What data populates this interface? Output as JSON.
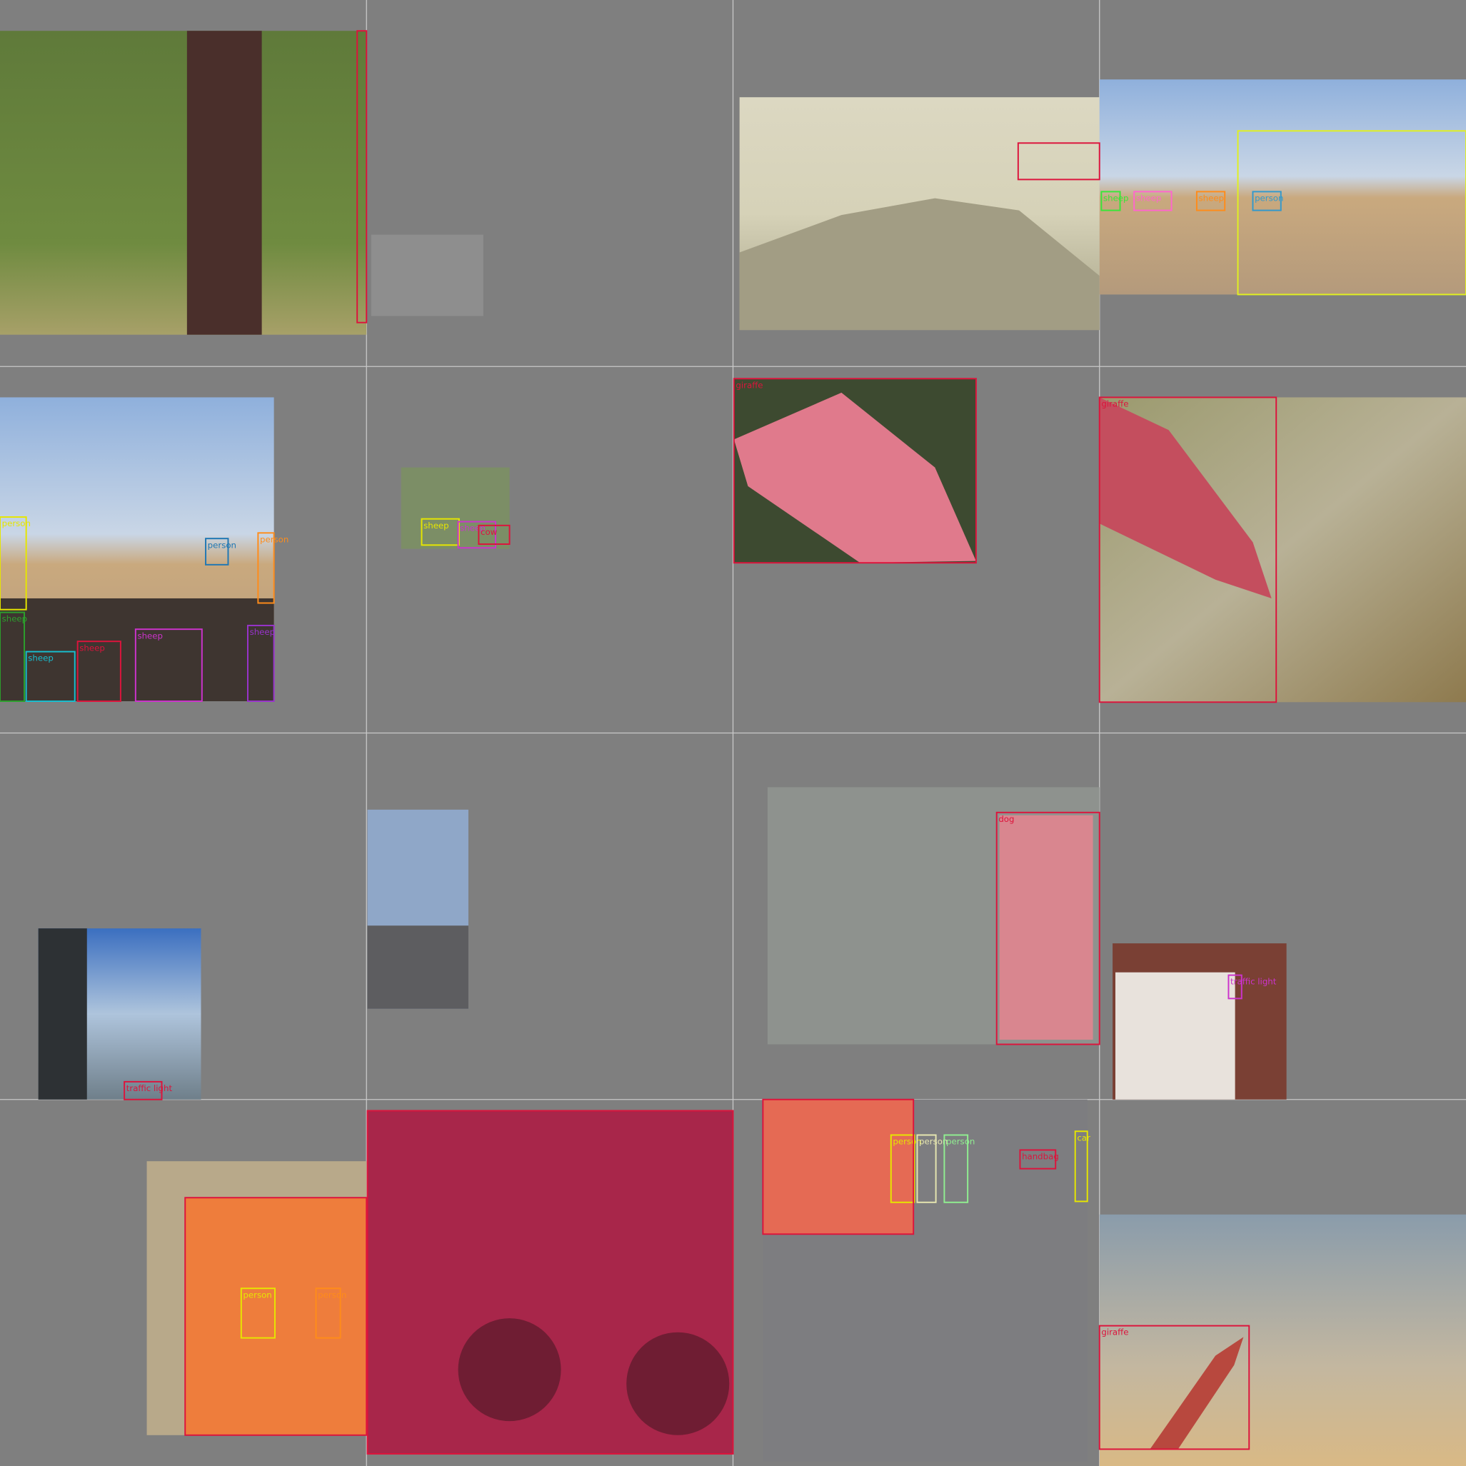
{
  "panels": [
    {
      "labels": [
        "sheep",
        "sheep",
        "sheep",
        "person"
      ]
    },
    {
      "labels": [
        "person",
        "person",
        "person",
        "sheep",
        "sheep",
        "sheep",
        "sheep",
        "sheep"
      ]
    },
    {
      "labels": [
        "sheep",
        "sheep",
        "cow"
      ]
    },
    {
      "labels": [
        "giraffe"
      ]
    },
    {
      "labels": [
        "giraffe"
      ]
    },
    {
      "labels": [
        "traffic light"
      ]
    },
    {
      "labels": [
        "dog"
      ]
    },
    {
      "labels": [
        "traffic light"
      ]
    },
    {
      "labels": [
        "person",
        "person"
      ]
    },
    {
      "labels": [
        "person",
        "person",
        "person",
        "handbag",
        "car"
      ]
    },
    {
      "labels": [
        "giraffe"
      ]
    }
  ]
}
